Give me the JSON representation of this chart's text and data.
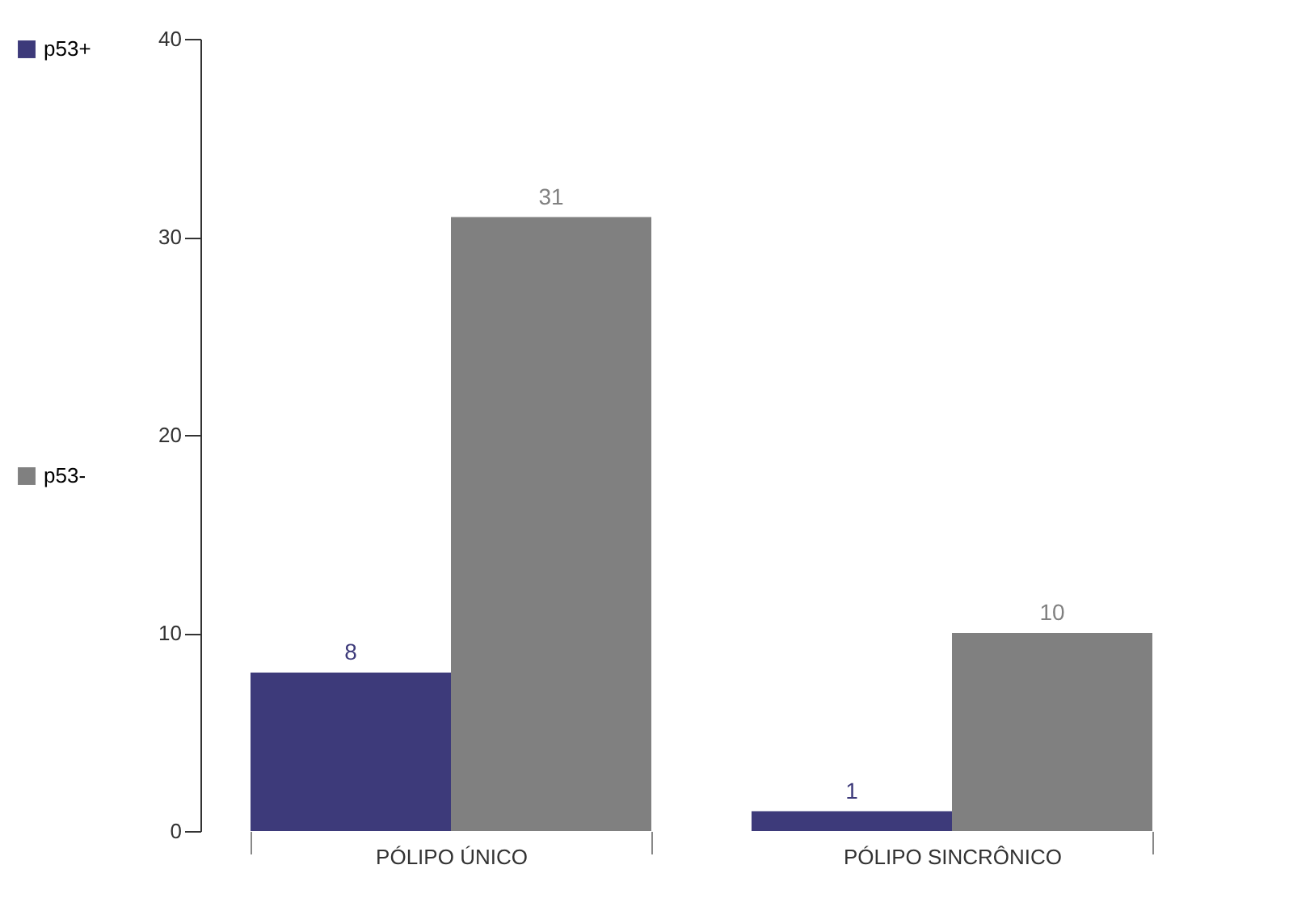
{
  "chart_data": {
    "type": "bar",
    "categories": [
      "PÓLIPO ÚNICO",
      "PÓLIPO SINCRÔNICO"
    ],
    "series": [
      {
        "name": "p53+",
        "color": "#3d3a7a",
        "values": [
          8,
          1
        ]
      },
      {
        "name": "p53-",
        "color": "#808080",
        "values": [
          31,
          10
        ]
      }
    ],
    "ylim": [
      0,
      40
    ],
    "yticks": [
      0,
      10,
      20,
      30,
      40
    ],
    "grid": false,
    "legend": "left",
    "data_labels": true
  }
}
